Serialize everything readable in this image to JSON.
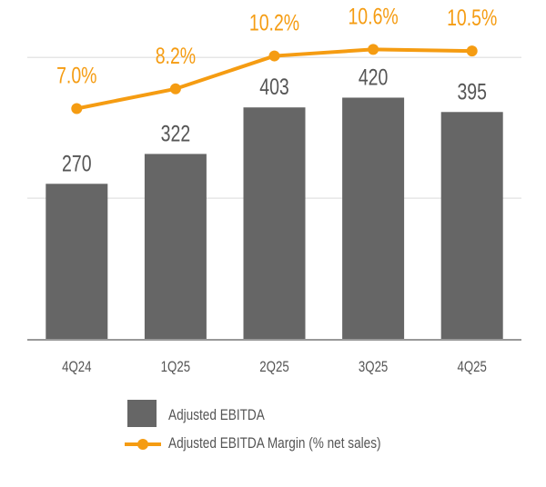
{
  "chart_data": {
    "type": "bar+line",
    "categories": [
      "4Q24",
      "1Q25",
      "2Q25",
      "3Q25",
      "4Q25"
    ],
    "series": [
      {
        "name": "Adjusted EBITDA",
        "type": "bar",
        "axis": "primary",
        "values": [
          270,
          322,
          403,
          420,
          395
        ],
        "labels": [
          "270",
          "322",
          "403",
          "420",
          "395"
        ],
        "color": "#666666"
      },
      {
        "name": "Adjusted EBITDA Margin (% net sales)",
        "type": "line",
        "axis": "secondary",
        "values": [
          7.0,
          8.2,
          10.2,
          10.6,
          10.5
        ],
        "labels": [
          "7.0%",
          "8.2%",
          "10.2%",
          "10.6%",
          "10.5%"
        ],
        "color": "#F59C12"
      }
    ],
    "ylim": [
      0,
      590
    ],
    "y2lim": [
      -7,
      13.6
    ],
    "gridlines": [
      245,
      490
    ],
    "grid": true,
    "axes_ticks_visible": false,
    "legend_position": "bottom",
    "title": "",
    "xlabel": "",
    "ylabel": ""
  },
  "legend": {
    "bar_label": "Adjusted EBITDA",
    "line_label": "Adjusted EBITDA Margin (% net sales)"
  }
}
